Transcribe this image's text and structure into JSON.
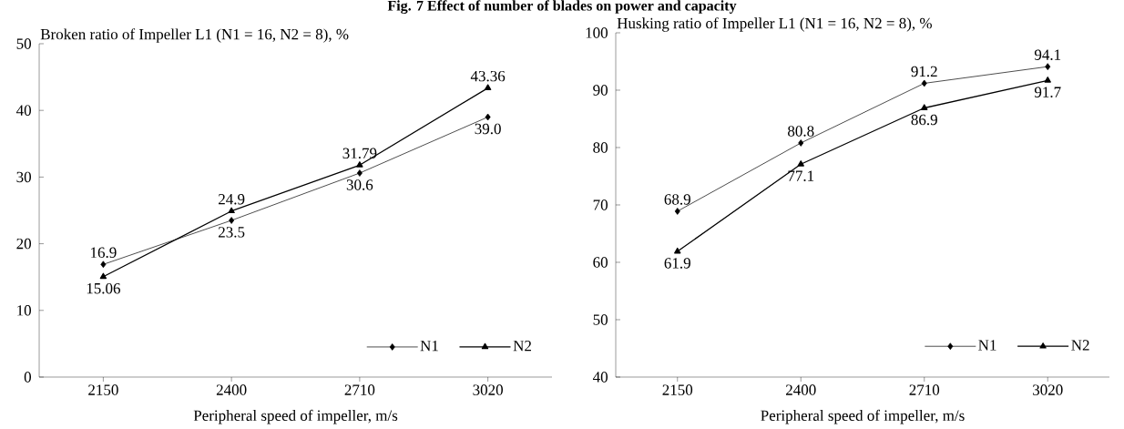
{
  "chart_data": [
    {
      "type": "line",
      "annotations": [
        "Fig. 7 Effect of number of blades on power and capacity"
      ],
      "ylabel": "Broken ratio of Impeller L1 (N1 = 16, N2 = 8), %",
      "xlabel": "Peripheral speed of impeller, m/s",
      "categories": [
        "2150",
        "2400",
        "2710",
        "3020"
      ],
      "ylim": [
        0,
        50
      ],
      "yticks": [
        0,
        10,
        20,
        30,
        40,
        50
      ],
      "legend": "bottom right",
      "grid": false,
      "series": [
        {
          "name": "N1",
          "color": "#000000",
          "marker": "diamond",
          "values": [
            16.9,
            23.5,
            30.6,
            39.0
          ],
          "value_labels": [
            "16.9",
            "23.5",
            "30.6",
            "39.0"
          ]
        },
        {
          "name": "N2",
          "color": "#000000",
          "marker": "triangle",
          "values": [
            15.06,
            24.9,
            31.79,
            43.36
          ],
          "value_labels": [
            "15.06",
            "24.9",
            "31.79",
            "43.36"
          ]
        }
      ]
    },
    {
      "type": "line",
      "ylabel": "Husking ratio of Impeller L1 (N1 = 16, N2 = 8), %",
      "xlabel": "Peripheral speed of impeller, m/s",
      "categories": [
        "2150",
        "2400",
        "2710",
        "3020"
      ],
      "ylim": [
        40,
        100
      ],
      "yticks": [
        40,
        50,
        60,
        70,
        80,
        90,
        100
      ],
      "legend": "bottom right",
      "grid": false,
      "series": [
        {
          "name": "N1",
          "color": "#000000",
          "marker": "diamond",
          "values": [
            68.9,
            80.8,
            91.2,
            94.1
          ],
          "value_labels": [
            "68.9",
            "80.8",
            "91.2",
            "94.1"
          ]
        },
        {
          "name": "N2",
          "color": "#000000",
          "marker": "triangle",
          "values": [
            61.9,
            77.1,
            86.9,
            91.7
          ],
          "value_labels": [
            "61.9",
            "77.1",
            "86.9",
            "91.7"
          ]
        }
      ]
    }
  ]
}
